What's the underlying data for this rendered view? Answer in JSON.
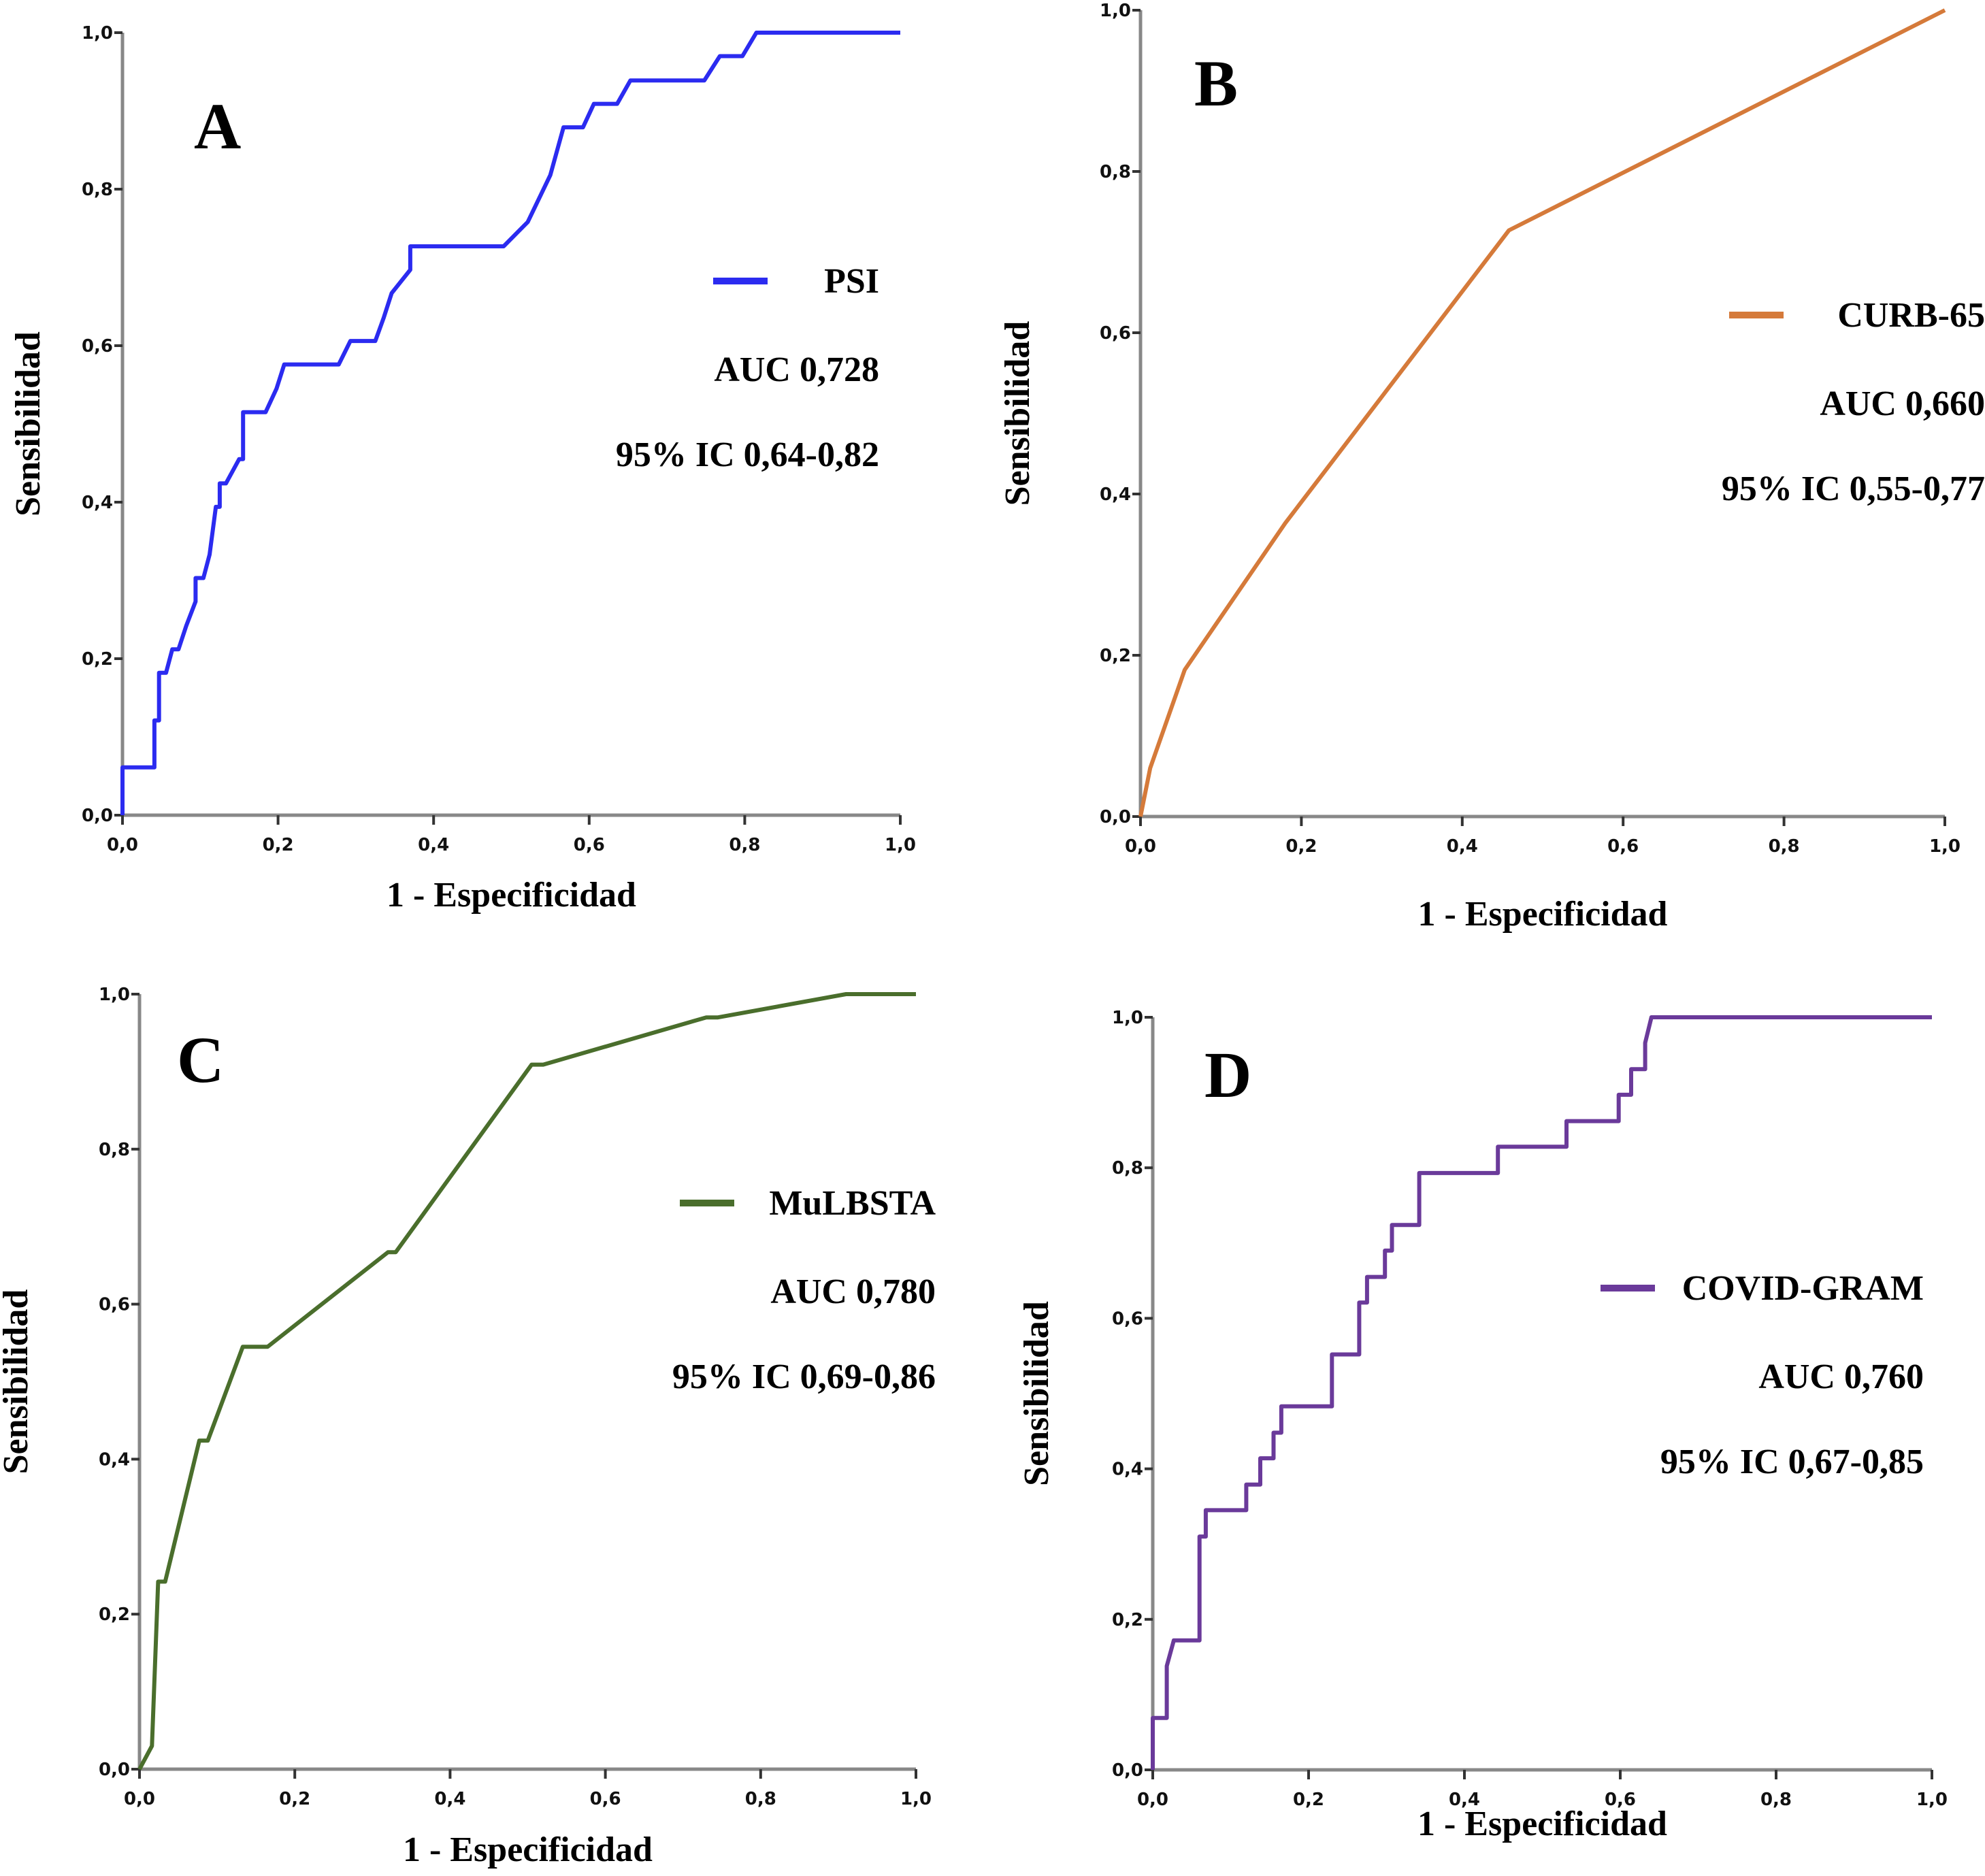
{
  "chart_data": [
    {
      "type": "line",
      "panel": "A",
      "xlabel": "1 - Especificidad",
      "ylabel": "Sensibilidad",
      "xlim": [
        0,
        1
      ],
      "ylim": [
        0,
        1
      ],
      "xticks": [
        "0,0",
        "0,2",
        "0,4",
        "0,6",
        "0,8",
        "1,0"
      ],
      "yticks": [
        "0,0",
        "0,2",
        "0,4",
        "0,6",
        "0,8",
        "1,0"
      ],
      "grid": false,
      "legend": "right",
      "series": [
        {
          "name": "PSI",
          "color": "#2b2bf0",
          "auc_label": "AUC 0,728",
          "ci_label": "95% IC 0,64-0,82",
          "points": [
            [
              0,
              0
            ],
            [
              0,
              0.061
            ],
            [
              0.041,
              0.061
            ],
            [
              0.041,
              0.121
            ],
            [
              0.047,
              0.121
            ],
            [
              0.047,
              0.182
            ],
            [
              0.056,
              0.182
            ],
            [
              0.064,
              0.212
            ],
            [
              0.072,
              0.212
            ],
            [
              0.082,
              0.242
            ],
            [
              0.094,
              0.273
            ],
            [
              0.094,
              0.303
            ],
            [
              0.104,
              0.303
            ],
            [
              0.112,
              0.333
            ],
            [
              0.12,
              0.394
            ],
            [
              0.125,
              0.394
            ],
            [
              0.125,
              0.424
            ],
            [
              0.133,
              0.424
            ],
            [
              0.15,
              0.455
            ],
            [
              0.155,
              0.455
            ],
            [
              0.155,
              0.515
            ],
            [
              0.184,
              0.515
            ],
            [
              0.198,
              0.545
            ],
            [
              0.208,
              0.576
            ],
            [
              0.278,
              0.576
            ],
            [
              0.293,
              0.606
            ],
            [
              0.325,
              0.606
            ],
            [
              0.336,
              0.636
            ],
            [
              0.346,
              0.667
            ],
            [
              0.37,
              0.697
            ],
            [
              0.37,
              0.727
            ],
            [
              0.49,
              0.727
            ],
            [
              0.521,
              0.758
            ],
            [
              0.55,
              0.818
            ],
            [
              0.567,
              0.879
            ],
            [
              0.592,
              0.879
            ],
            [
              0.606,
              0.909
            ],
            [
              0.636,
              0.909
            ],
            [
              0.653,
              0.939
            ],
            [
              0.748,
              0.939
            ],
            [
              0.768,
              0.97
            ],
            [
              0.797,
              0.97
            ],
            [
              0.815,
              1.0
            ],
            [
              1,
              1
            ]
          ]
        }
      ]
    },
    {
      "type": "line",
      "panel": "B",
      "xlabel": "1 - Especificidad",
      "ylabel": "Sensibilidad",
      "xlim": [
        0,
        1
      ],
      "ylim": [
        0,
        1
      ],
      "xticks": [
        "0,0",
        "0,2",
        "0,4",
        "0,6",
        "0,8",
        "1,0"
      ],
      "yticks": [
        "0,0",
        "0,2",
        "0,4",
        "0,6",
        "0,8",
        "1,0"
      ],
      "grid": false,
      "legend": "right",
      "series": [
        {
          "name": "CURB-65",
          "color": "#d57a3a",
          "auc_label": "AUC 0,660",
          "ci_label": "95% IC 0,55-0,77",
          "points": [
            [
              0,
              0
            ],
            [
              0.012,
              0.06
            ],
            [
              0.055,
              0.182
            ],
            [
              0.18,
              0.364
            ],
            [
              0.458,
              0.727
            ],
            [
              1,
              1
            ]
          ]
        }
      ]
    },
    {
      "type": "line",
      "panel": "C",
      "xlabel": "1 - Especificidad",
      "ylabel": "Sensibilidad",
      "xlim": [
        0,
        1
      ],
      "ylim": [
        0,
        1
      ],
      "xticks": [
        "0,0",
        "0,2",
        "0,4",
        "0,6",
        "0,8",
        "1,0"
      ],
      "yticks": [
        "0,0",
        "0,2",
        "0,4",
        "0,6",
        "0,8",
        "1,0"
      ],
      "grid": false,
      "legend": "right",
      "series": [
        {
          "name": "MuLBSTA",
          "color": "#4a6e2c",
          "auc_label": "AUC 0,780",
          "ci_label": "95% IC 0,69-0,86",
          "points": [
            [
              0,
              0
            ],
            [
              0.016,
              0.03
            ],
            [
              0.024,
              0.242
            ],
            [
              0.033,
              0.242
            ],
            [
              0.077,
              0.424
            ],
            [
              0.088,
              0.424
            ],
            [
              0.133,
              0.545
            ],
            [
              0.165,
              0.545
            ],
            [
              0.32,
              0.667
            ],
            [
              0.33,
              0.667
            ],
            [
              0.505,
              0.909
            ],
            [
              0.52,
              0.909
            ],
            [
              0.73,
              0.97
            ],
            [
              0.745,
              0.97
            ],
            [
              0.91,
              1.0
            ],
            [
              1,
              1
            ]
          ]
        }
      ]
    },
    {
      "type": "line",
      "panel": "D",
      "xlabel": "1 - Especificidad",
      "ylabel": "Sensibilidad",
      "xlim": [
        0,
        1
      ],
      "ylim": [
        0,
        1
      ],
      "xticks": [
        "0,0",
        "0,2",
        "0,4",
        "0,6",
        "0,8",
        "1,0"
      ],
      "yticks": [
        "0,0",
        "0,2",
        "0,4",
        "0,6",
        "0,8",
        "1,0"
      ],
      "grid": false,
      "legend": "right",
      "series": [
        {
          "name": "COVID-GRAM",
          "color": "#6a3a9a",
          "auc_label": "AUC 0,760",
          "ci_label": "95% IC 0,67-0,85",
          "points": [
            [
              0,
              0
            ],
            [
              0,
              0.069
            ],
            [
              0.018,
              0.069
            ],
            [
              0.018,
              0.138
            ],
            [
              0.027,
              0.172
            ],
            [
              0.06,
              0.172
            ],
            [
              0.06,
              0.31
            ],
            [
              0.068,
              0.31
            ],
            [
              0.068,
              0.345
            ],
            [
              0.12,
              0.345
            ],
            [
              0.12,
              0.379
            ],
            [
              0.138,
              0.379
            ],
            [
              0.138,
              0.414
            ],
            [
              0.155,
              0.414
            ],
            [
              0.155,
              0.448
            ],
            [
              0.165,
              0.448
            ],
            [
              0.165,
              0.483
            ],
            [
              0.23,
              0.483
            ],
            [
              0.23,
              0.552
            ],
            [
              0.265,
              0.552
            ],
            [
              0.265,
              0.621
            ],
            [
              0.275,
              0.621
            ],
            [
              0.275,
              0.655
            ],
            [
              0.298,
              0.655
            ],
            [
              0.298,
              0.69
            ],
            [
              0.307,
              0.69
            ],
            [
              0.307,
              0.724
            ],
            [
              0.342,
              0.724
            ],
            [
              0.342,
              0.793
            ],
            [
              0.443,
              0.793
            ],
            [
              0.443,
              0.828
            ],
            [
              0.531,
              0.828
            ],
            [
              0.531,
              0.862
            ],
            [
              0.598,
              0.862
            ],
            [
              0.598,
              0.897
            ],
            [
              0.614,
              0.897
            ],
            [
              0.614,
              0.931
            ],
            [
              0.632,
              0.931
            ],
            [
              0.632,
              0.966
            ],
            [
              0.64,
              1.0
            ],
            [
              1,
              1
            ]
          ]
        }
      ]
    }
  ]
}
